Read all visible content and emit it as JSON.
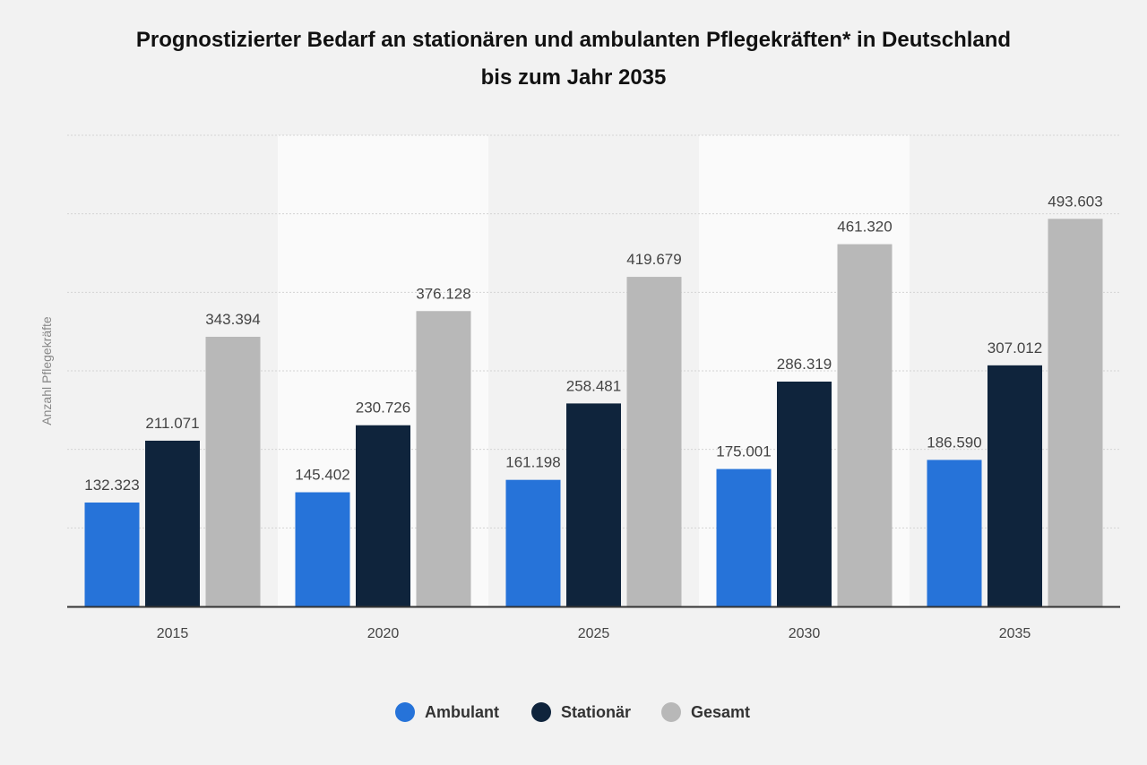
{
  "chart_data": {
    "type": "bar",
    "title": "Prognostizierter Bedarf an stationären und ambulanten Pflegekräften* in Deutschland",
    "subtitle": "bis zum Jahr 2035",
    "xlabel": "",
    "ylabel": "Anzahl Pflegekräfte",
    "ylim": [
      0,
      600000
    ],
    "grid": true,
    "legend_placement": "bottom",
    "categories": [
      "2015",
      "2020",
      "2025",
      "2030",
      "2035"
    ],
    "series": [
      {
        "name": "Ambulant",
        "color": "#2673d9",
        "values": [
          132323,
          145402,
          161198,
          175001,
          186590
        ],
        "labels": [
          "132.323",
          "145.402",
          "161.198",
          "175.001",
          "186.590"
        ]
      },
      {
        "name": "Stationär",
        "color": "#0f243c",
        "values": [
          211071,
          230726,
          258481,
          286319,
          307012
        ],
        "labels": [
          "211.071",
          "230.726",
          "258.481",
          "286.319",
          "307.012"
        ]
      },
      {
        "name": "Gesamt",
        "color": "#b8b8b8",
        "values": [
          343394,
          376128,
          419679,
          461320,
          493603
        ],
        "labels": [
          "343.394",
          "376.128",
          "419.679",
          "461.320",
          "493.603"
        ]
      }
    ]
  }
}
